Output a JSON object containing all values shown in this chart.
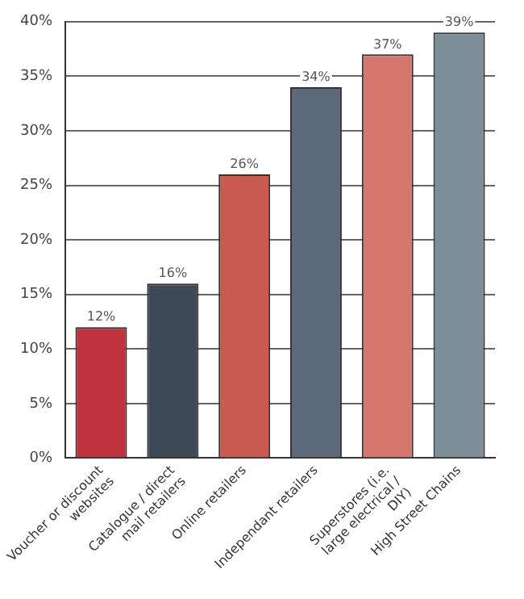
{
  "chart_data": {
    "type": "bar",
    "categories": [
      "Voucher or discount websites",
      "Catalogue / direct mail retailers",
      "Online retailers",
      "Independant retailers",
      "Superstores (i.e. large electrical / DIY)",
      "High Street Chains"
    ],
    "values": [
      12,
      16,
      26,
      34,
      37,
      39
    ],
    "colors": [
      "#c0323e",
      "#3d4a55",
      "#c85a4f",
      "#5b6a76",
      "#d5776e",
      "#7e8e99"
    ],
    "value_labels": [
      "12%",
      "16%",
      "26%",
      "34%",
      "37%",
      "39%"
    ],
    "ylim": [
      0,
      40
    ],
    "yticks": [
      {
        "value": 0,
        "label": "0%"
      },
      {
        "value": 5,
        "label": "5%"
      },
      {
        "value": 10,
        "label": "10%"
      },
      {
        "value": 15,
        "label": "15%"
      },
      {
        "value": 20,
        "label": "20%"
      },
      {
        "value": 25,
        "label": "25%"
      },
      {
        "value": 30,
        "label": "30%"
      },
      {
        "value": 35,
        "label": "35%"
      },
      {
        "value": 40,
        "label": "40%"
      }
    ],
    "grid": "y",
    "legend": false
  }
}
